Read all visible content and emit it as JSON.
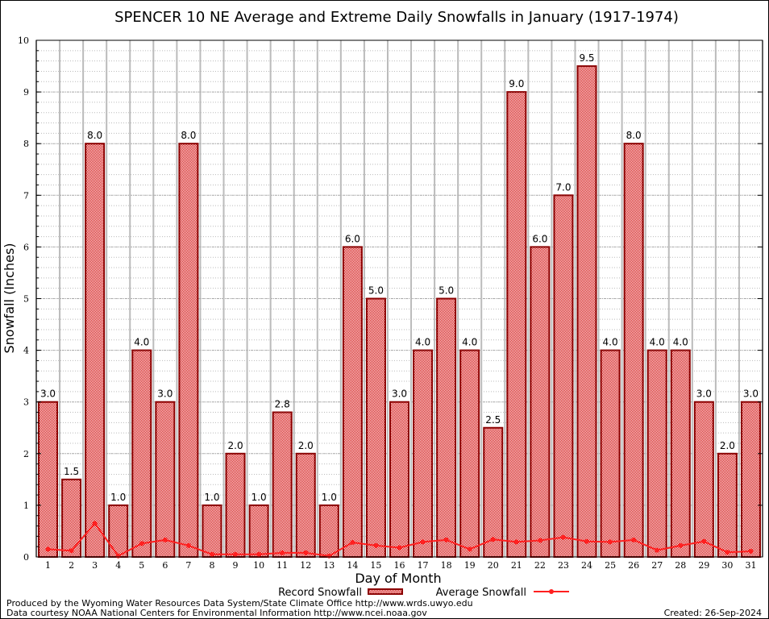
{
  "chart_data": {
    "type": "bar",
    "title": "SPENCER 10 NE Average and Extreme Daily Snowfalls in January (1917-1974)",
    "xlabel": "Day of Month",
    "ylabel": "Snowfall (Inches)",
    "ylim": [
      0,
      10
    ],
    "yticks": [
      "0",
      "1",
      "2",
      "3",
      "4",
      "5",
      "6",
      "7",
      "8",
      "9",
      "10"
    ],
    "grid": true,
    "legend_position": "bottom",
    "categories": [
      "1",
      "2",
      "3",
      "4",
      "5",
      "6",
      "7",
      "8",
      "9",
      "10",
      "11",
      "12",
      "13",
      "14",
      "15",
      "16",
      "17",
      "18",
      "19",
      "20",
      "21",
      "22",
      "23",
      "24",
      "25",
      "26",
      "27",
      "28",
      "29",
      "30",
      "31"
    ],
    "series": [
      {
        "name": "Record Snowfall",
        "type": "bar",
        "color": "#cc0000",
        "values": [
          3.0,
          1.5,
          8.0,
          1.0,
          4.0,
          3.0,
          8.0,
          1.0,
          2.0,
          1.0,
          2.8,
          2.0,
          1.0,
          6.0,
          5.0,
          3.0,
          4.0,
          5.0,
          4.0,
          2.5,
          9.0,
          6.0,
          7.0,
          9.5,
          4.0,
          8.0,
          4.0,
          4.0,
          3.0,
          2.0,
          3.0
        ],
        "labels": [
          "3.0",
          "1.5",
          "8.0",
          "1.0",
          "4.0",
          "3.0",
          "8.0",
          "1.0",
          "2.0",
          "1.0",
          "2.8",
          "2.0",
          "1.0",
          "6.0",
          "5.0",
          "3.0",
          "4.0",
          "5.0",
          "4.0",
          "2.5",
          "9.0",
          "6.0",
          "7.0",
          "9.5",
          "4.0",
          "8.0",
          "4.0",
          "4.0",
          "3.0",
          "2.0",
          "3.0"
        ]
      },
      {
        "name": "Average Snowfall",
        "type": "line",
        "color": "#ff2020",
        "values": [
          0.15,
          0.12,
          0.65,
          0.02,
          0.26,
          0.33,
          0.22,
          0.05,
          0.05,
          0.05,
          0.08,
          0.08,
          0.02,
          0.28,
          0.22,
          0.18,
          0.29,
          0.33,
          0.15,
          0.34,
          0.29,
          0.32,
          0.38,
          0.3,
          0.29,
          0.33,
          0.13,
          0.22,
          0.3,
          0.09,
          0.11
        ]
      }
    ]
  },
  "footer": {
    "credit1": "Produced by the Wyoming Water Resources Data System/State Climate Office http://www.wrds.uwyo.edu",
    "credit2": "Data courtesy NOAA National Centers for Environmental Information http://www.ncei.noaa.gov",
    "created": "Created:  26-Sep-2024"
  }
}
